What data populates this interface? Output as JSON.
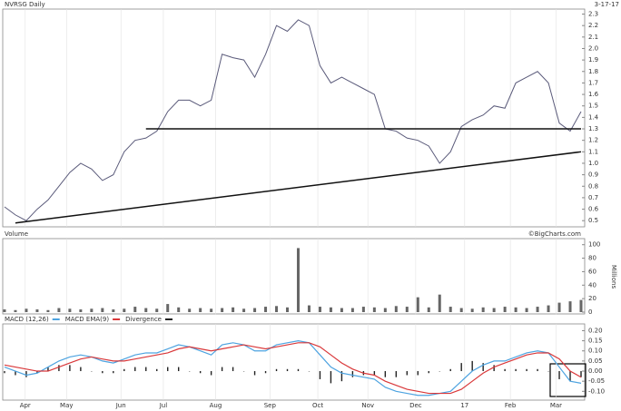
{
  "chart_data": [
    {
      "type": "line",
      "title": "NVRSG Daily",
      "date": "3-17-17",
      "color": "#5a5a7a",
      "xlim": [
        0,
        53
      ],
      "ylim": [
        0.47,
        2.32
      ],
      "yticks": [
        {
          "value": 0.5,
          "label": "0.5"
        },
        {
          "value": 0.6,
          "label": "0.6"
        },
        {
          "value": 0.7,
          "label": "0.7"
        },
        {
          "value": 0.8,
          "label": "0.8"
        },
        {
          "value": 0.9,
          "label": "0.9"
        },
        {
          "value": 1.0,
          "label": "1.0"
        },
        {
          "value": 1.1,
          "label": "1.1"
        },
        {
          "value": 1.2,
          "label": "1.2"
        },
        {
          "value": 1.3,
          "label": "1.3"
        },
        {
          "value": 1.4,
          "label": "1.4"
        },
        {
          "value": 1.5,
          "label": "1.5"
        },
        {
          "value": 1.6,
          "label": "1.6"
        },
        {
          "value": 1.7,
          "label": "1.7"
        },
        {
          "value": 1.8,
          "label": "1.8"
        },
        {
          "value": 1.9,
          "label": "1.9"
        },
        {
          "value": 2.0,
          "label": "2.0"
        },
        {
          "value": 2.1,
          "label": "2.1"
        },
        {
          "value": 2.2,
          "label": "2.2"
        },
        {
          "value": 2.3,
          "label": "2.3"
        }
      ],
      "values": [
        0.62,
        0.55,
        0.5,
        0.6,
        0.68,
        0.8,
        0.92,
        1.0,
        0.95,
        0.85,
        0.9,
        1.1,
        1.2,
        1.22,
        1.28,
        1.45,
        1.55,
        1.55,
        1.5,
        1.55,
        1.95,
        1.92,
        1.9,
        1.75,
        1.95,
        2.2,
        2.15,
        2.25,
        2.2,
        1.85,
        1.7,
        1.75,
        1.7,
        1.65,
        1.6,
        1.3,
        1.28,
        1.22,
        1.2,
        1.15,
        1.0,
        1.1,
        1.32,
        1.38,
        1.42,
        1.5,
        1.48,
        1.7,
        1.75,
        1.8,
        1.7,
        1.35,
        1.28,
        1.45
      ],
      "trendlines": [
        {
          "x": [
            1,
            53
          ],
          "values": [
            0.48,
            1.1
          ]
        },
        {
          "x": [
            13,
            53
          ],
          "values": [
            1.3,
            1.3
          ]
        }
      ]
    },
    {
      "type": "bar",
      "title": "Volume",
      "source": "©BigCharts.com",
      "ylabel": "Millions",
      "color": "#666",
      "xlim": [
        0,
        53
      ],
      "ylim": [
        0,
        105
      ],
      "yticks": [
        0,
        20,
        40,
        60,
        80,
        100
      ],
      "values": [
        4,
        3,
        5,
        4,
        3,
        6,
        5,
        4,
        5,
        6,
        4,
        5,
        8,
        6,
        5,
        12,
        7,
        5,
        6,
        5,
        6,
        7,
        5,
        6,
        8,
        9,
        7,
        95,
        10,
        8,
        7,
        6,
        6,
        8,
        7,
        6,
        9,
        8,
        22,
        7,
        26,
        8,
        6,
        5,
        7,
        6,
        8,
        7,
        6,
        8,
        10,
        14,
        16,
        18
      ]
    },
    {
      "type": "line",
      "xlim": [
        0,
        53
      ],
      "ylim": [
        -0.13,
        0.22
      ],
      "yticks": [
        {
          "value": 0.2,
          "label": "0.20"
        },
        {
          "value": 0.15,
          "label": "0.15"
        },
        {
          "value": 0.1,
          "label": "0.10"
        },
        {
          "value": 0.05,
          "label": "0.05"
        },
        {
          "value": 0,
          "label": "0.00"
        },
        {
          "value": -0.05,
          "label": "-0.05"
        },
        {
          "value": -0.1,
          "label": "-0.10"
        }
      ],
      "xticks": [
        {
          "value": 1.9,
          "label": "Apr"
        },
        {
          "value": 5.7,
          "label": "May"
        },
        {
          "value": 10.7,
          "label": "Jun"
        },
        {
          "value": 14.6,
          "label": "Jul"
        },
        {
          "value": 19.4,
          "label": "Aug"
        },
        {
          "value": 24.4,
          "label": "Sep"
        },
        {
          "value": 28.8,
          "label": "Oct"
        },
        {
          "value": 33.4,
          "label": "Nov"
        },
        {
          "value": 37.8,
          "label": "Dec"
        },
        {
          "value": 42.3,
          "label": "17"
        },
        {
          "value": 46.5,
          "label": "Feb"
        },
        {
          "value": 50.7,
          "label": "Mar"
        }
      ],
      "series": [
        {
          "name": "MACD (12,26)",
          "color": "#4da3e0",
          "values": [
            0.02,
            0.0,
            -0.02,
            -0.01,
            0.02,
            0.05,
            0.07,
            0.08,
            0.07,
            0.05,
            0.04,
            0.06,
            0.08,
            0.09,
            0.09,
            0.11,
            0.13,
            0.12,
            0.1,
            0.08,
            0.13,
            0.14,
            0.13,
            0.1,
            0.1,
            0.13,
            0.14,
            0.15,
            0.14,
            0.08,
            0.02,
            -0.01,
            -0.02,
            -0.03,
            -0.04,
            -0.08,
            -0.1,
            -0.11,
            -0.12,
            -0.12,
            -0.11,
            -0.1,
            -0.05,
            0.0,
            0.03,
            0.05,
            0.05,
            0.07,
            0.09,
            0.1,
            0.09,
            0.02,
            -0.05,
            -0.06
          ]
        },
        {
          "name": "MACD EMA(9)",
          "color": "#d9383a",
          "values": [
            0.03,
            0.02,
            0.01,
            0.0,
            0.0,
            0.02,
            0.04,
            0.06,
            0.07,
            0.06,
            0.05,
            0.05,
            0.06,
            0.07,
            0.08,
            0.09,
            0.11,
            0.12,
            0.11,
            0.1,
            0.11,
            0.12,
            0.13,
            0.12,
            0.11,
            0.12,
            0.13,
            0.14,
            0.14,
            0.12,
            0.08,
            0.04,
            0.01,
            -0.01,
            -0.02,
            -0.05,
            -0.07,
            -0.09,
            -0.1,
            -0.11,
            -0.11,
            -0.11,
            -0.09,
            -0.05,
            -0.01,
            0.02,
            0.04,
            0.06,
            0.08,
            0.09,
            0.09,
            0.06,
            0.0,
            -0.03
          ]
        }
      ],
      "histogram": {
        "name": "Divergence",
        "color": "#222",
        "values": [
          -0.01,
          -0.02,
          -0.03,
          -0.01,
          0.02,
          0.03,
          0.03,
          0.02,
          0.0,
          -0.01,
          -0.01,
          0.01,
          0.02,
          0.02,
          0.01,
          0.02,
          0.02,
          0.0,
          -0.01,
          -0.02,
          0.02,
          0.02,
          0.0,
          -0.02,
          -0.01,
          0.01,
          0.01,
          0.01,
          0.0,
          -0.04,
          -0.06,
          -0.05,
          -0.03,
          -0.02,
          -0.02,
          -0.03,
          -0.03,
          -0.02,
          -0.02,
          -0.01,
          0.0,
          0.01,
          0.04,
          0.05,
          0.04,
          0.03,
          0.01,
          0.01,
          0.01,
          0.01,
          0.0,
          -0.04,
          -0.05,
          -0.03
        ]
      }
    }
  ]
}
